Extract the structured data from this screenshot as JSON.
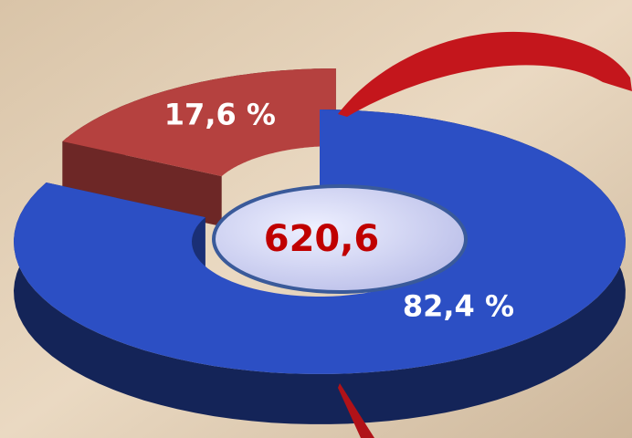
{
  "chart_data": {
    "type": "pie",
    "values": [
      17.6,
      82.4
    ],
    "value_labels": [
      "17,6 %",
      "82,4 %"
    ],
    "colors": [
      "#b5413f",
      "#2c4fc4"
    ],
    "center_label": "620,6"
  }
}
